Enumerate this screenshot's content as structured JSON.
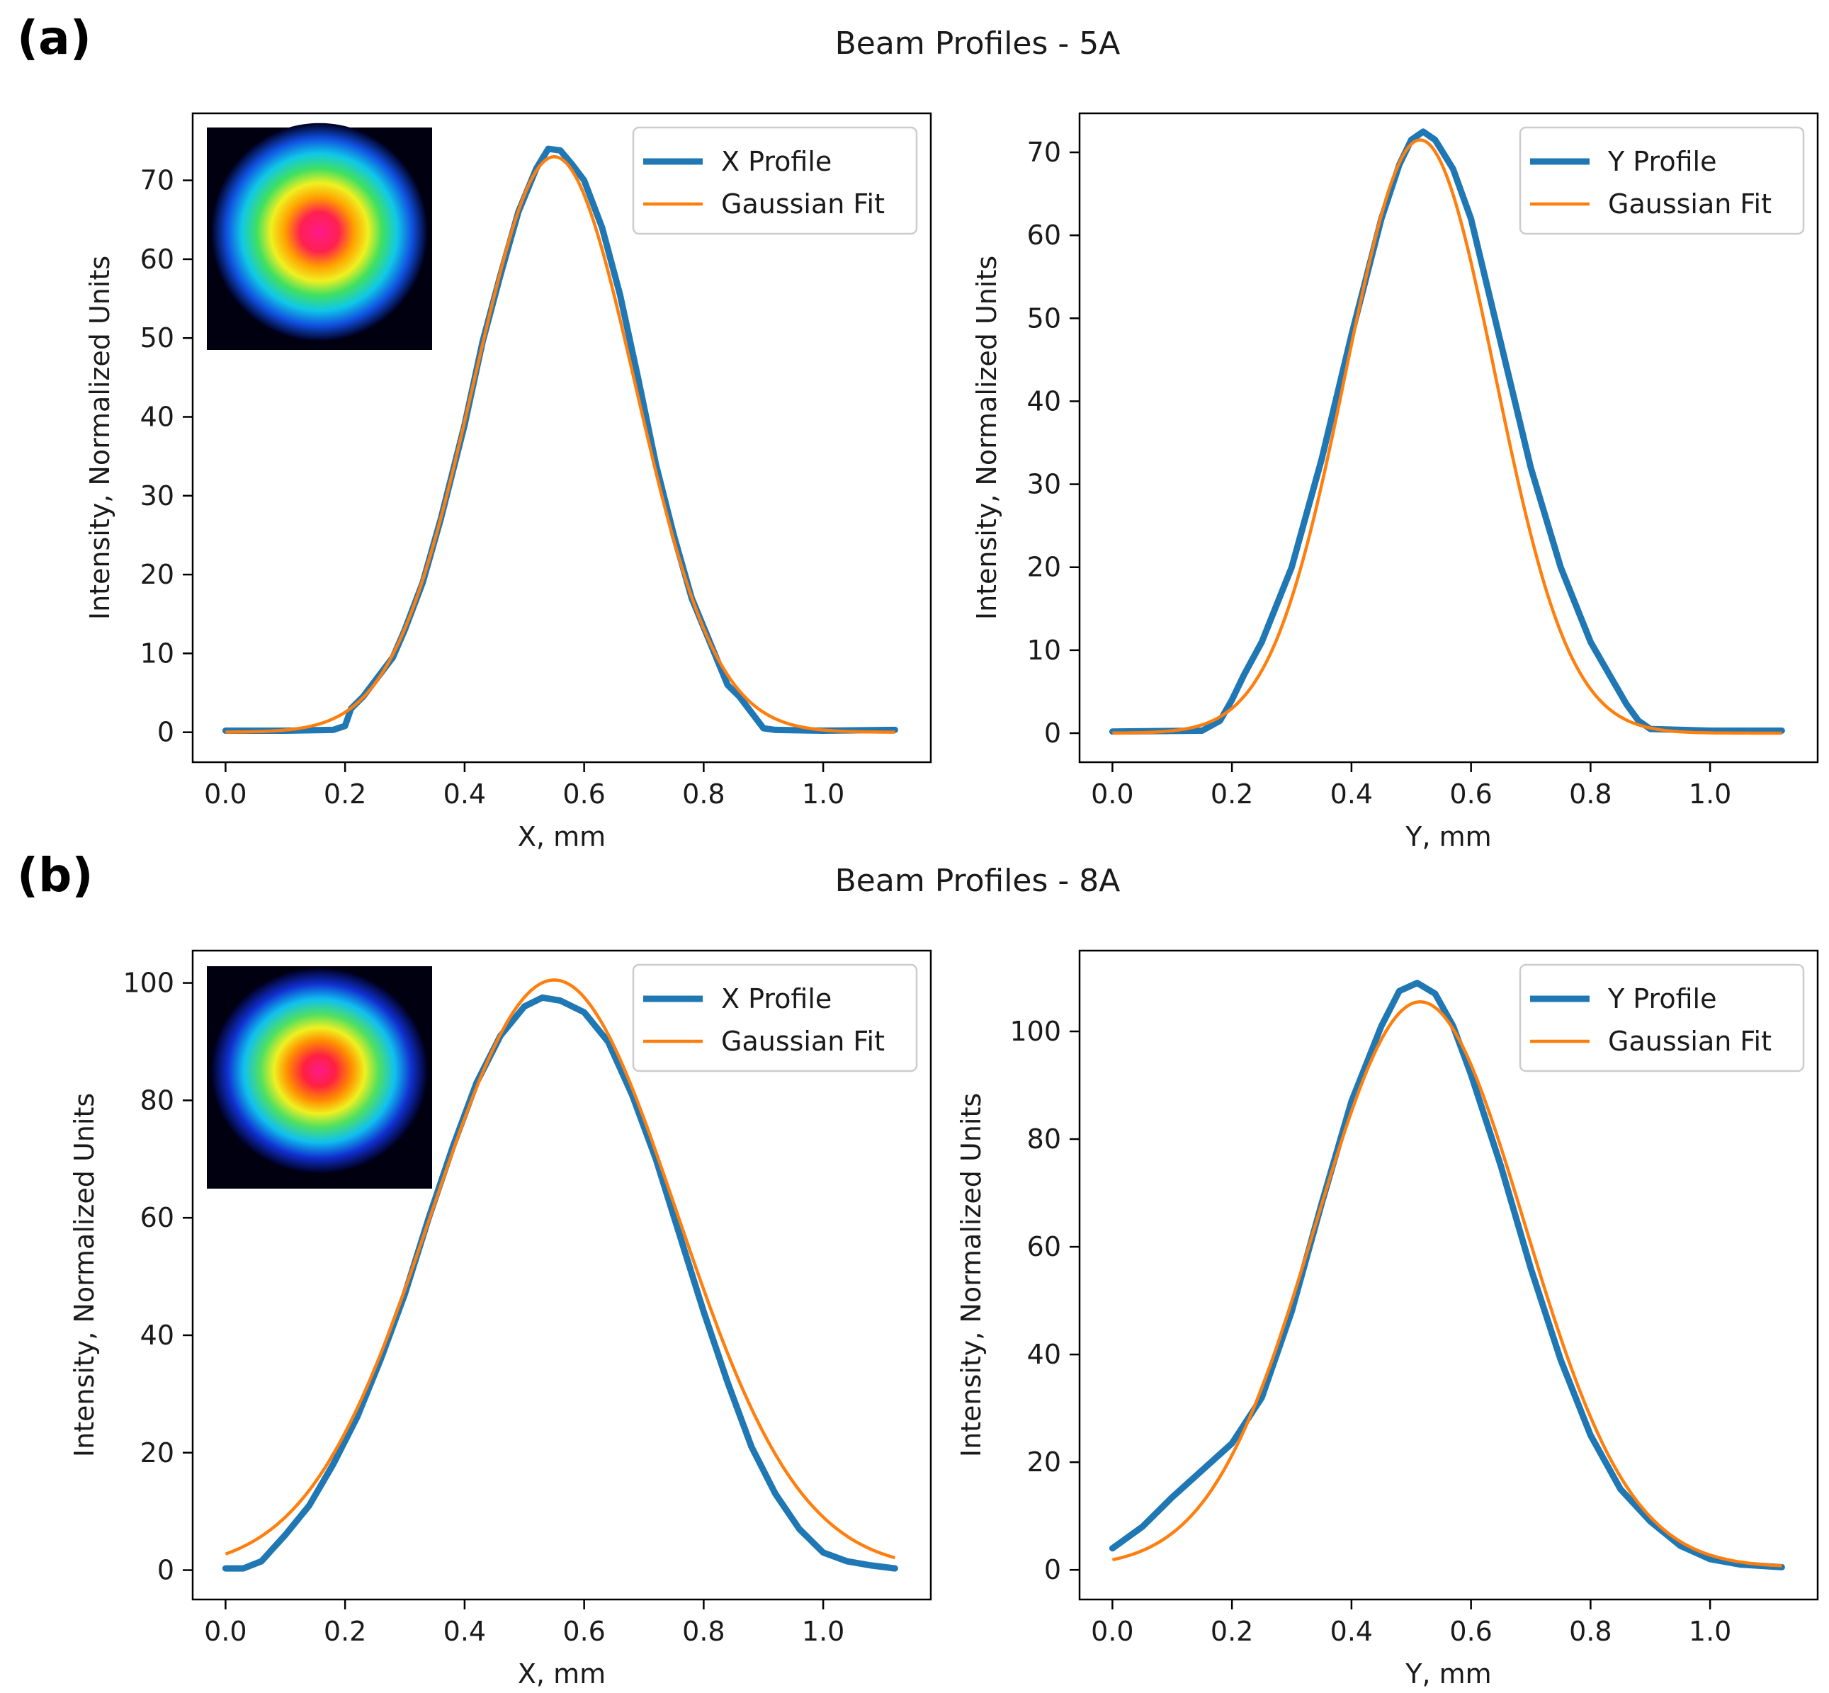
{
  "colors": {
    "profile": "#1f77b4",
    "fit": "#ff7f0e",
    "axes": "#000000",
    "legend_border": "#cccccc",
    "inset_background": "#000010"
  },
  "figure": {
    "panels": [
      {
        "label": "(a)",
        "title": "Beam Profiles - 5A"
      },
      {
        "label": "(b)",
        "title": "Beam Profiles - 8A"
      }
    ]
  },
  "chart_data": [
    {
      "type": "line",
      "panel": "(a)",
      "title": "Beam Profiles - 5A",
      "xlabel": "X, mm",
      "ylabel": "Intensity, Normalized Units",
      "xlim": [
        -0.055,
        1.18
      ],
      "ylim": [
        -3.8,
        78.5
      ],
      "xticks": [
        0.0,
        0.2,
        0.4,
        0.6,
        0.8,
        1.0
      ],
      "xtick_labels": [
        "0.0",
        "0.2",
        "0.4",
        "0.6",
        "0.8",
        "1.0"
      ],
      "yticks": [
        0,
        10,
        20,
        30,
        40,
        50,
        60,
        70
      ],
      "ytick_labels": [
        "0",
        "10",
        "20",
        "30",
        "40",
        "50",
        "60",
        "70"
      ],
      "legend_position": "top-right",
      "inset_image": "beam-spot-x-5A",
      "series": [
        {
          "name": "X Profile",
          "x": [
            0.0,
            0.1,
            0.18,
            0.2,
            0.21,
            0.23,
            0.25,
            0.28,
            0.3,
            0.33,
            0.36,
            0.4,
            0.43,
            0.46,
            0.49,
            0.52,
            0.54,
            0.56,
            0.58,
            0.6,
            0.63,
            0.66,
            0.69,
            0.72,
            0.75,
            0.78,
            0.81,
            0.84,
            0.86,
            0.88,
            0.9,
            0.92,
            1.0,
            1.12
          ],
          "y": [
            0.2,
            0.2,
            0.3,
            0.8,
            3.0,
            4.5,
            6.5,
            9.5,
            13.0,
            19.0,
            27.0,
            39.0,
            49.5,
            58.0,
            66.0,
            71.5,
            74.0,
            73.8,
            72.0,
            70.0,
            64.0,
            55.5,
            45.0,
            34.0,
            25.0,
            17.0,
            11.5,
            6.0,
            4.5,
            2.5,
            0.5,
            0.3,
            0.2,
            0.3
          ]
        },
        {
          "name": "Gaussian Fit",
          "fit": {
            "amplitude": 73.0,
            "center": 0.55,
            "sigma": 0.135,
            "x_start": 0.0,
            "x_end": 1.12
          }
        }
      ]
    },
    {
      "type": "line",
      "panel": "(a)",
      "xlabel": "Y, mm",
      "ylabel": "Intensity, Normalized Units",
      "xlim": [
        -0.055,
        1.18
      ],
      "ylim": [
        -3.5,
        74.7
      ],
      "xticks": [
        0.0,
        0.2,
        0.4,
        0.6,
        0.8,
        1.0
      ],
      "xtick_labels": [
        "0.0",
        "0.2",
        "0.4",
        "0.6",
        "0.8",
        "1.0"
      ],
      "yticks": [
        0,
        10,
        20,
        30,
        40,
        50,
        60,
        70
      ],
      "ytick_labels": [
        "0",
        "10",
        "20",
        "30",
        "40",
        "50",
        "60",
        "70"
      ],
      "legend_position": "top-right",
      "series": [
        {
          "name": "Y Profile",
          "x": [
            0.0,
            0.15,
            0.18,
            0.2,
            0.22,
            0.25,
            0.3,
            0.35,
            0.4,
            0.45,
            0.48,
            0.5,
            0.52,
            0.54,
            0.57,
            0.6,
            0.65,
            0.7,
            0.75,
            0.8,
            0.84,
            0.86,
            0.88,
            0.9,
            1.0,
            1.12
          ],
          "y": [
            0.2,
            0.3,
            1.5,
            4.0,
            7.0,
            11.0,
            20.0,
            33.0,
            48.0,
            62.0,
            68.5,
            71.5,
            72.5,
            71.5,
            68.0,
            62.0,
            47.0,
            32.0,
            20.0,
            11.0,
            6.0,
            3.5,
            1.5,
            0.5,
            0.3,
            0.3
          ]
        },
        {
          "name": "Gaussian Fit",
          "fit": {
            "amplitude": 71.5,
            "center": 0.515,
            "sigma": 0.125,
            "x_start": 0.0,
            "x_end": 1.12
          }
        }
      ]
    },
    {
      "type": "line",
      "panel": "(b)",
      "title": "Beam Profiles - 8A",
      "xlabel": "X, mm",
      "ylabel": "Intensity, Normalized Units",
      "xlim": [
        -0.055,
        1.18
      ],
      "ylim": [
        -5.0,
        105.5
      ],
      "xticks": [
        0.0,
        0.2,
        0.4,
        0.6,
        0.8,
        1.0
      ],
      "xtick_labels": [
        "0.0",
        "0.2",
        "0.4",
        "0.6",
        "0.8",
        "1.0"
      ],
      "yticks": [
        0,
        20,
        40,
        60,
        80,
        100
      ],
      "ytick_labels": [
        "0",
        "20",
        "40",
        "60",
        "80",
        "100"
      ],
      "legend_position": "top-right",
      "inset_image": "beam-spot-x-8A",
      "series": [
        {
          "name": "X Profile",
          "x": [
            0.0,
            0.03,
            0.06,
            0.1,
            0.14,
            0.18,
            0.22,
            0.26,
            0.3,
            0.34,
            0.38,
            0.42,
            0.46,
            0.5,
            0.53,
            0.56,
            0.6,
            0.64,
            0.68,
            0.72,
            0.76,
            0.8,
            0.84,
            0.88,
            0.92,
            0.96,
            1.0,
            1.04,
            1.08,
            1.12
          ],
          "y": [
            0.3,
            0.3,
            1.5,
            6.0,
            11.0,
            18.0,
            26.0,
            36.0,
            47.0,
            60.0,
            72.0,
            83.0,
            91.0,
            96.0,
            97.5,
            97.0,
            95.0,
            90.0,
            81.0,
            70.0,
            57.0,
            44.0,
            32.0,
            21.0,
            13.0,
            7.0,
            3.0,
            1.5,
            0.8,
            0.3
          ]
        },
        {
          "name": "Gaussian Fit",
          "fit": {
            "amplitude": 100.5,
            "center": 0.55,
            "sigma": 0.205,
            "x_start": 0.0,
            "x_end": 1.12
          }
        }
      ]
    },
    {
      "type": "line",
      "panel": "(b)",
      "xlabel": "Y, mm",
      "ylabel": "Intensity, Normalized Units",
      "xlim": [
        -0.055,
        1.18
      ],
      "ylim": [
        -5.5,
        115.0
      ],
      "xticks": [
        0.0,
        0.2,
        0.4,
        0.6,
        0.8,
        1.0
      ],
      "xtick_labels": [
        "0.0",
        "0.2",
        "0.4",
        "0.6",
        "0.8",
        "1.0"
      ],
      "yticks": [
        0,
        20,
        40,
        60,
        80,
        100
      ],
      "ytick_labels": [
        "0",
        "20",
        "40",
        "60",
        "80",
        "100"
      ],
      "legend_position": "top-right",
      "series": [
        {
          "name": "Y Profile",
          "x": [
            0.0,
            0.05,
            0.1,
            0.15,
            0.2,
            0.25,
            0.3,
            0.35,
            0.4,
            0.45,
            0.48,
            0.51,
            0.54,
            0.57,
            0.6,
            0.65,
            0.7,
            0.75,
            0.8,
            0.85,
            0.9,
            0.95,
            1.0,
            1.05,
            1.12
          ],
          "y": [
            4.0,
            8.0,
            13.5,
            18.5,
            23.5,
            32.0,
            48.0,
            68.0,
            87.0,
            101.0,
            107.5,
            109.0,
            107.0,
            101.0,
            92.0,
            75.0,
            56.0,
            39.0,
            25.0,
            15.0,
            9.0,
            4.5,
            2.0,
            1.0,
            0.5
          ]
        },
        {
          "name": "Gaussian Fit",
          "fit": {
            "amplitude": 105.0,
            "center": 0.515,
            "sigma": 0.175,
            "offset": 0.5,
            "x_start": 0.0,
            "x_end": 1.12
          }
        }
      ]
    }
  ]
}
